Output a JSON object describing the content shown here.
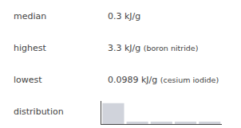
{
  "chart_data": {
    "type": "bar",
    "categories": [
      null,
      null,
      null,
      null,
      null
    ],
    "values": [
      8,
      1,
      1,
      1,
      1
    ],
    "color": "#d0d3db",
    "ylim": [
      0,
      8.8
    ],
    "tick_labels": false,
    "grid": false,
    "annotations": [
      [
        "median",
        "0.3 kJ/g"
      ],
      [
        "highest",
        "3.3 kJ/g",
        "(boron nitride)"
      ],
      [
        "lowest",
        "0.0989 kJ/g",
        "(cesium iodide)"
      ],
      [
        "distribution"
      ]
    ]
  }
}
